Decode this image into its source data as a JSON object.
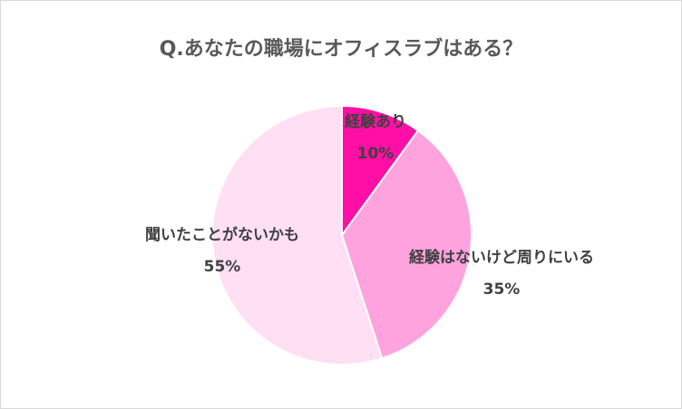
{
  "chart_data": {
    "type": "pie",
    "title": "Q.あなたの職場にオフィスラブはある？",
    "categories": [
      "経験あり",
      "経験はないけど周りにいる",
      "聞いたことがないかも"
    ],
    "values": [
      10,
      35,
      55
    ],
    "value_labels": [
      "10%",
      "35%",
      "55%"
    ],
    "colors": [
      "#ff0fa5",
      "#ffa3de",
      "#ffdff4"
    ]
  }
}
